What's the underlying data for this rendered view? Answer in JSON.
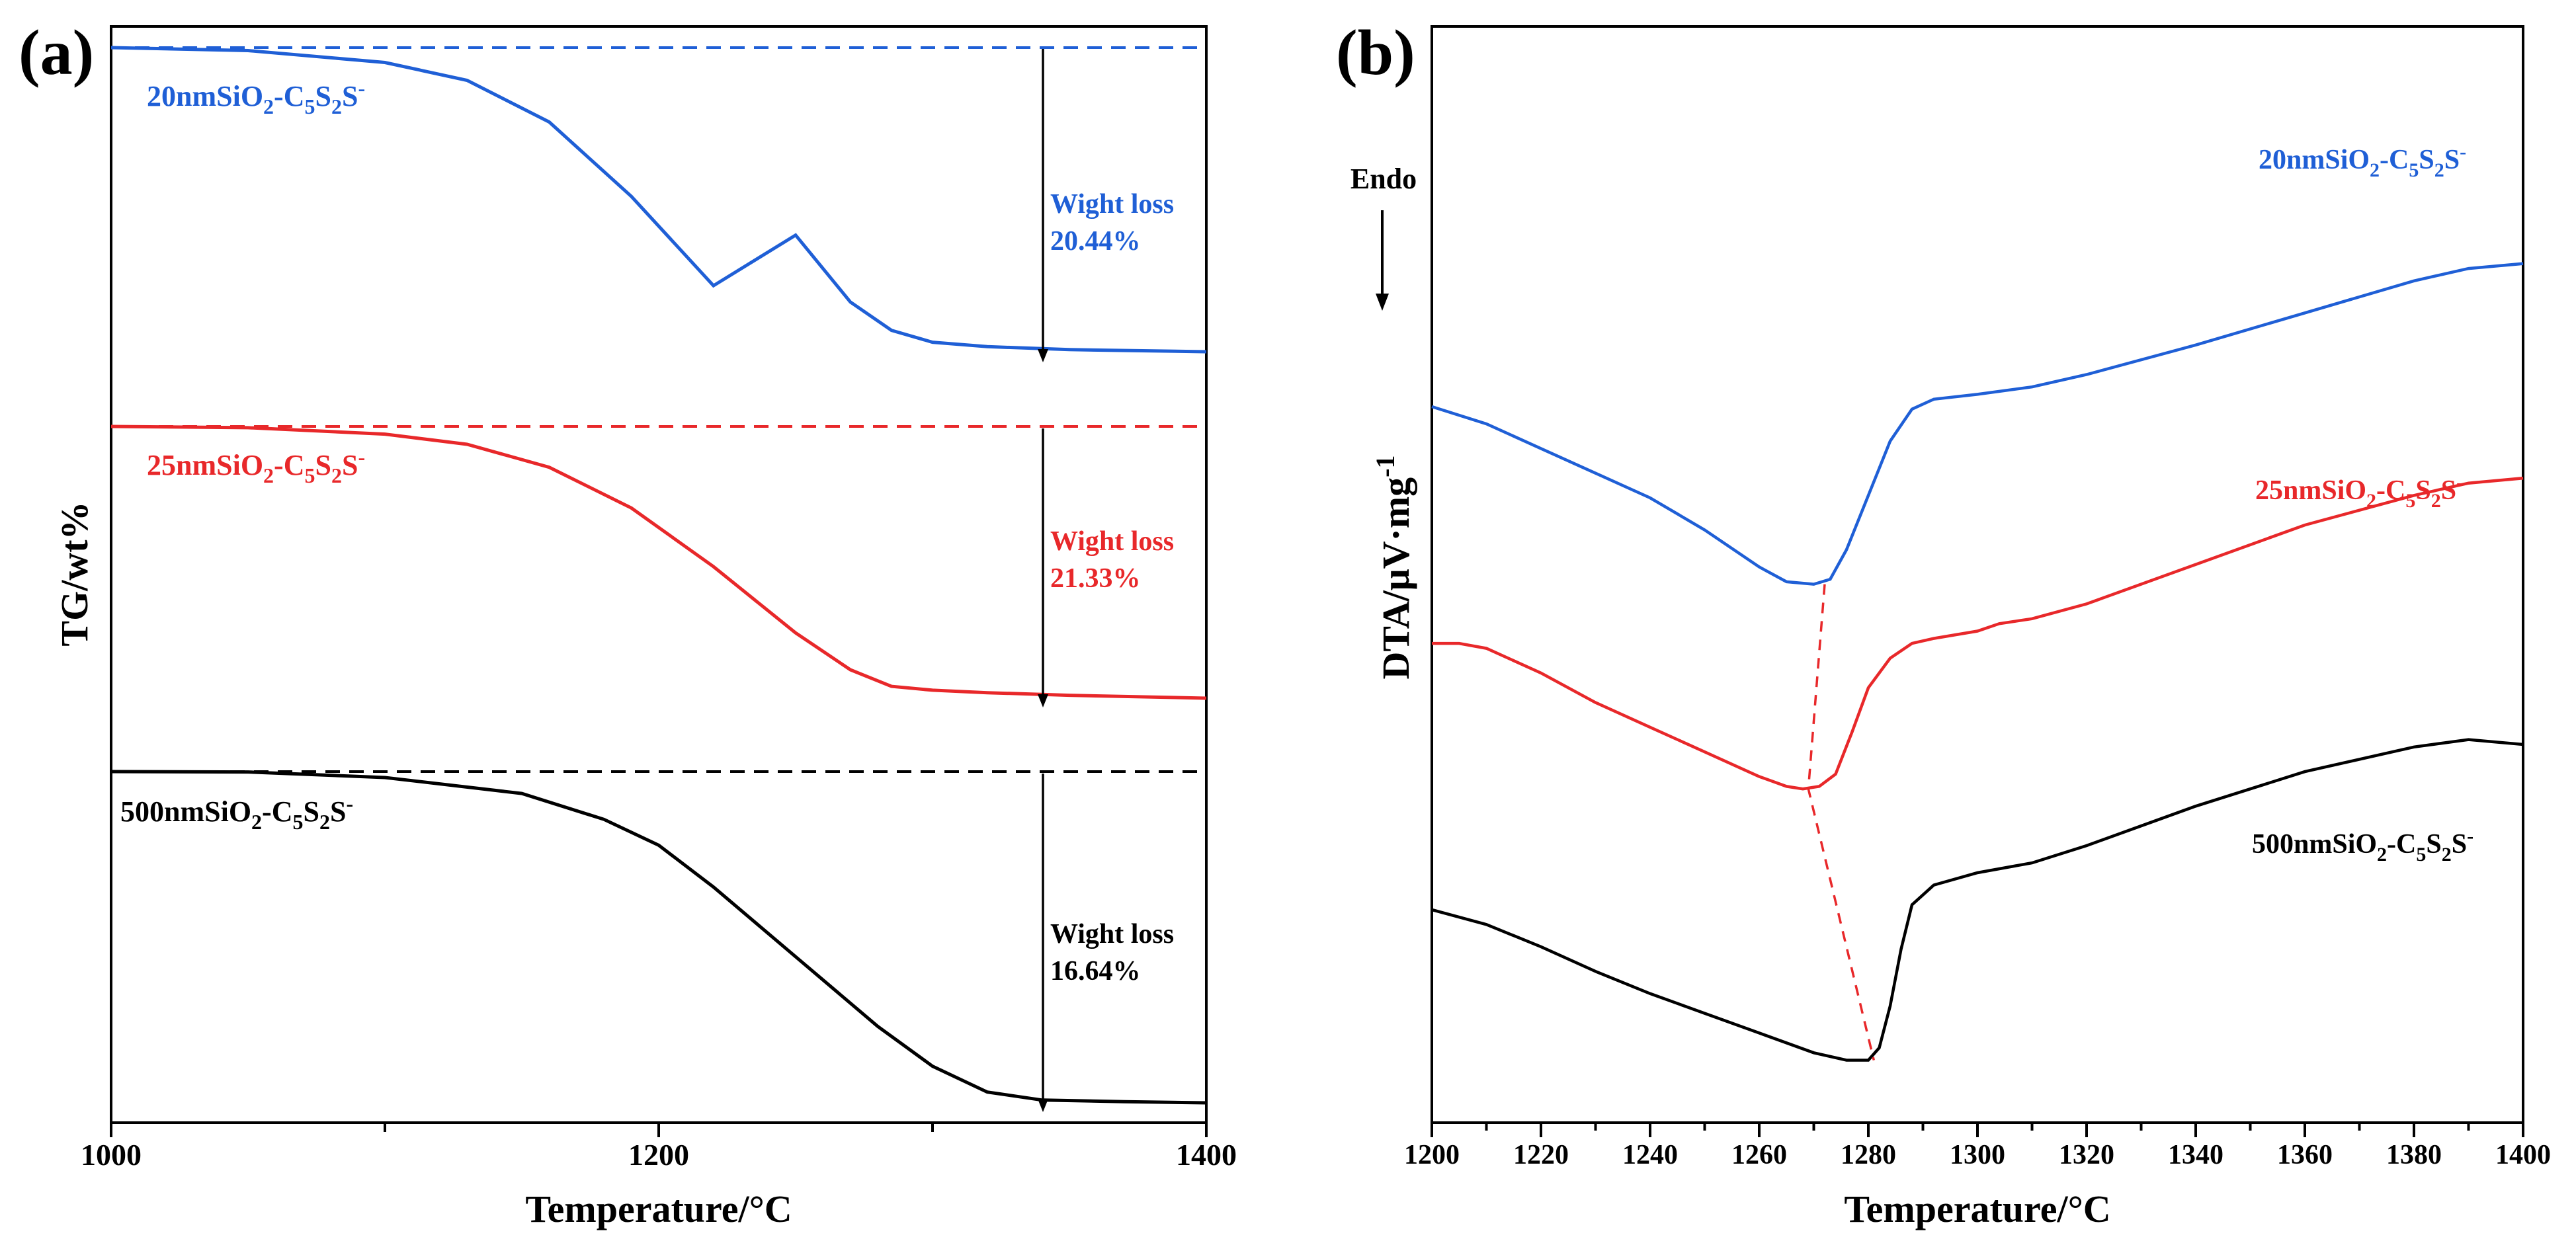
{
  "chart_data": [
    {
      "type": "line",
      "panel_label": "(a)",
      "xlabel": "Temperature/°C",
      "ylabel": "TG/wt%",
      "xlim": [
        1000,
        1400
      ],
      "x_ticks": [
        1000,
        1200,
        1400
      ],
      "grid": false,
      "y_units": "stacked, arbitrary (offset per series)",
      "series": [
        {
          "name": "20nmSiO₂-C₅S₂S⁻",
          "color": "#1f5fd6",
          "x": [
            1000,
            1050,
            1100,
            1130,
            1160,
            1190,
            1220,
            1250,
            1270,
            1285,
            1300,
            1320,
            1350,
            1400
          ],
          "y": [
            100,
            99.8,
            99.0,
            97.8,
            95.0,
            90.0,
            84.0,
            87.4,
            82.9,
            81.0,
            80.2,
            79.9,
            79.7,
            79.56
          ]
        },
        {
          "name": "25nmSiO₂-C₅S₂S⁻",
          "color": "#e8282a",
          "x": [
            1000,
            1050,
            1100,
            1130,
            1160,
            1190,
            1220,
            1250,
            1270,
            1285,
            1300,
            1320,
            1350,
            1400
          ],
          "y": [
            100,
            99.9,
            99.4,
            98.6,
            96.8,
            93.6,
            89.0,
            83.8,
            80.9,
            79.6,
            79.3,
            79.1,
            78.9,
            78.67
          ]
        },
        {
          "name": "500nmSiO₂-C₅S₂S⁻",
          "color": "#000000",
          "x": [
            1000,
            1050,
            1100,
            1150,
            1180,
            1200,
            1220,
            1250,
            1280,
            1300,
            1320,
            1340,
            1370,
            1400
          ],
          "y": [
            100,
            99.98,
            99.7,
            98.9,
            97.6,
            96.3,
            94.2,
            90.7,
            87.2,
            85.2,
            83.9,
            83.5,
            83.42,
            83.36
          ]
        }
      ],
      "annotations": [
        {
          "series": "20nmSiO₂-C₅S₂S⁻",
          "line1": "Wight loss",
          "line2": "20.44%",
          "color": "#1f5fd6"
        },
        {
          "series": "25nmSiO₂-C₅S₂S⁻",
          "line1": "Wight loss",
          "line2": "21.33%",
          "color": "#e8282a"
        },
        {
          "series": "500nmSiO₂-C₅S₂S⁻",
          "line1": "Wight loss",
          "line2": "16.64%",
          "color": "#000000"
        }
      ],
      "labels": [
        {
          "prefix": "20nmSiO",
          "s1": "2",
          "mid1": "-C",
          "s2": "5",
          "mid2": "S",
          "s3": "2",
          "mid3": "S",
          "sup": "-",
          "color": "#1f5fd6"
        },
        {
          "prefix": "25nmSiO",
          "s1": "2",
          "mid1": "-C",
          "s2": "5",
          "mid2": "S",
          "s3": "2",
          "mid3": "S",
          "sup": "-",
          "color": "#e8282a"
        },
        {
          "prefix": "500nmSiO",
          "s1": "2",
          "mid1": "-C",
          "s2": "5",
          "mid2": "S",
          "s3": "2",
          "mid3": "S",
          "sup": "-",
          "color": "#000000"
        }
      ]
    },
    {
      "type": "line",
      "panel_label": "(b)",
      "xlabel": "Temperature/°C",
      "ylabel_main": "DTA/μV·mg",
      "ylabel_sup": "-1",
      "endo_label": "Endo",
      "xlim": [
        1200,
        1400
      ],
      "x_ticks": [
        1200,
        1220,
        1240,
        1260,
        1280,
        1300,
        1320,
        1340,
        1360,
        1380,
        1400
      ],
      "grid": false,
      "y_units": "stacked, arbitrary (offset per series)",
      "series": [
        {
          "name": "20nmSiO₂-C₅S₂S⁻",
          "color": "#1f5fd6",
          "x": [
            1200,
            1210,
            1220,
            1230,
            1240,
            1250,
            1260,
            1265,
            1270,
            1273,
            1276,
            1280,
            1284,
            1288,
            1292,
            1300,
            1310,
            1320,
            1340,
            1360,
            1380,
            1390,
            1400
          ],
          "y": [
            12.6,
            11.9,
            10.9,
            9.9,
            8.9,
            7.6,
            6.1,
            5.5,
            5.4,
            5.6,
            6.8,
            9.0,
            11.2,
            12.5,
            12.9,
            13.1,
            13.4,
            13.9,
            15.1,
            16.4,
            17.7,
            18.2,
            18.4
          ]
        },
        {
          "name": "25nmSiO₂-C₅S₂S⁻",
          "color": "#e8282a",
          "x": [
            1200,
            1205,
            1210,
            1220,
            1230,
            1240,
            1250,
            1260,
            1265,
            1268,
            1271,
            1274,
            1277,
            1280,
            1284,
            1288,
            1292,
            1300,
            1304,
            1310,
            1320,
            1340,
            1360,
            1380,
            1390,
            1400
          ],
          "y": [
            3.0,
            3.0,
            2.8,
            1.8,
            0.6,
            -0.4,
            -1.4,
            -2.4,
            -2.8,
            -2.9,
            -2.8,
            -2.3,
            -0.6,
            1.2,
            2.4,
            3.0,
            3.2,
            3.5,
            3.8,
            4.0,
            4.6,
            6.2,
            7.8,
            9.0,
            9.5,
            9.7
          ]
        },
        {
          "name": "500nmSiO₂-C₅S₂S⁻",
          "color": "#000000",
          "x": [
            1200,
            1210,
            1220,
            1230,
            1240,
            1250,
            1260,
            1270,
            1276,
            1280,
            1282,
            1284,
            1286,
            1288,
            1292,
            1300,
            1310,
            1320,
            1340,
            1360,
            1380,
            1390,
            1400
          ],
          "y": [
            -7.8,
            -8.4,
            -9.3,
            -10.3,
            -11.2,
            -12.0,
            -12.8,
            -13.6,
            -13.9,
            -13.9,
            -13.4,
            -11.7,
            -9.4,
            -7.6,
            -6.8,
            -6.3,
            -5.9,
            -5.2,
            -3.6,
            -2.2,
            -1.2,
            -0.9,
            -1.1
          ]
        }
      ],
      "minima_guide": {
        "x": [
          1272,
          1269,
          1281
        ],
        "y": [
          5.4,
          -2.9,
          -13.9
        ],
        "color": "#e8282a",
        "dashed": true
      },
      "labels": [
        {
          "prefix": "20nmSiO",
          "s1": "2",
          "mid1": "-C",
          "s2": "5",
          "mid2": "S",
          "s3": "2",
          "mid3": "S",
          "sup": "-",
          "color": "#1f5fd6"
        },
        {
          "prefix": "25nmSiO",
          "s1": "2",
          "mid1": "-C",
          "s2": "5",
          "mid2": "S",
          "s3": "2",
          "mid3": "S",
          "sup": "-",
          "color": "#e8282a"
        },
        {
          "prefix": "500nmSiO",
          "s1": "2",
          "mid1": "-C",
          "s2": "5",
          "mid2": "S",
          "s3": "2",
          "mid3": "S",
          "sup": "-",
          "color": "#000000"
        }
      ]
    }
  ]
}
